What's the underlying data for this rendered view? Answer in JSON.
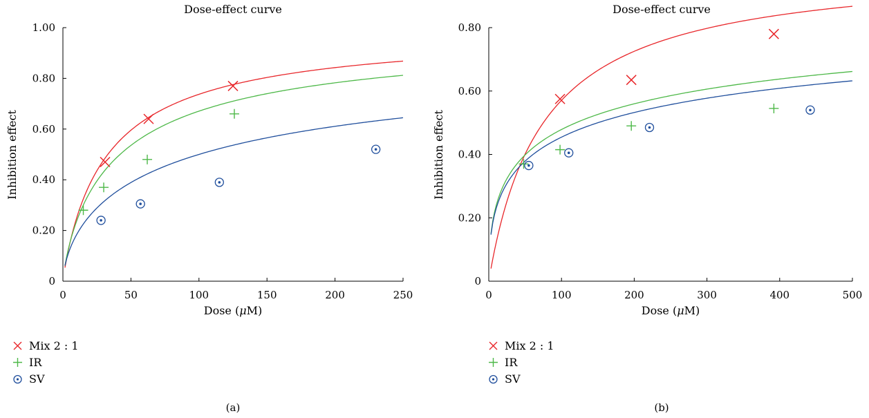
{
  "chart_data": [
    {
      "type": "scatter",
      "title": "Dose-effect curve",
      "xlabel": "Dose (μM)",
      "ylabel": "Inhibition effect",
      "panel_label": "(a)",
      "xlim": [
        0,
        250
      ],
      "ylim": [
        0,
        1.0
      ],
      "xticks": [
        0,
        50,
        100,
        150,
        200,
        250
      ],
      "yticks": [
        0,
        0.2,
        0.4,
        0.6,
        0.8,
        1.0
      ],
      "xtick_labels": [
        "0",
        "50",
        "100",
        "150",
        "200",
        "250"
      ],
      "ytick_labels": [
        "0",
        "0.20",
        "0.40",
        "0.60",
        "0.80",
        "1.00"
      ],
      "grid": false,
      "legend_placement": "bottom-left, below plot",
      "series": [
        {
          "name": "Mix 2 : 1",
          "color": "#e8262a",
          "marker": "x",
          "points": [
            [
              31,
              0.47
            ],
            [
              63,
              0.64
            ],
            [
              125,
              0.77
            ]
          ],
          "fit": {
            "m": 0.93,
            "dm": 33
          }
        },
        {
          "name": "IR",
          "color": "#4db848",
          "marker": "plus",
          "points": [
            [
              15,
              0.28
            ],
            [
              30,
              0.37
            ],
            [
              62,
              0.48
            ],
            [
              126,
              0.66
            ]
          ],
          "fit": {
            "m": 0.82,
            "dm": 42
          }
        },
        {
          "name": "SV",
          "color": "#1f4e9c",
          "marker": "circle-dot",
          "points": [
            [
              28,
              0.24
            ],
            [
              57,
              0.305
            ],
            [
              115,
              0.39
            ],
            [
              230,
              0.52
            ]
          ],
          "fit": {
            "m": 0.65,
            "dm": 100
          }
        }
      ]
    },
    {
      "type": "scatter",
      "title": "Dose-effect curve",
      "xlabel": "Dose (μM)",
      "ylabel": "Inhibition effect",
      "panel_label": "(b)",
      "xlim": [
        0,
        500
      ],
      "ylim": [
        0,
        0.8
      ],
      "xticks": [
        0,
        100,
        200,
        300,
        400,
        500
      ],
      "yticks": [
        0,
        0.2,
        0.4,
        0.6,
        0.8
      ],
      "xtick_labels": [
        "0",
        "100",
        "200",
        "300",
        "400",
        "500"
      ],
      "ytick_labels": [
        "0",
        "0.20",
        "0.40",
        "0.60",
        "0.80"
      ],
      "grid": false,
      "legend_placement": "bottom-left, below plot",
      "series": [
        {
          "name": "Mix 2 : 1",
          "color": "#e8262a",
          "marker": "x",
          "points": [
            [
              98,
              0.575
            ],
            [
              196,
              0.635
            ],
            [
              392,
              0.78
            ]
          ],
          "fit": {
            "m": 0.99,
            "dm": 75
          }
        },
        {
          "name": "IR",
          "color": "#4db848",
          "marker": "plus",
          "points": [
            [
              48,
              0.37
            ],
            [
              98,
              0.415
            ],
            [
              196,
              0.49
            ],
            [
              392,
              0.545
            ]
          ],
          "fit": {
            "m": 0.47,
            "dm": 120
          }
        },
        {
          "name": "SV",
          "color": "#1f4e9c",
          "marker": "circle-dot",
          "points": [
            [
              55,
              0.365
            ],
            [
              110,
              0.405
            ],
            [
              221,
              0.485
            ],
            [
              442,
              0.54
            ]
          ],
          "fit": {
            "m": 0.45,
            "dm": 150
          }
        }
      ]
    }
  ]
}
